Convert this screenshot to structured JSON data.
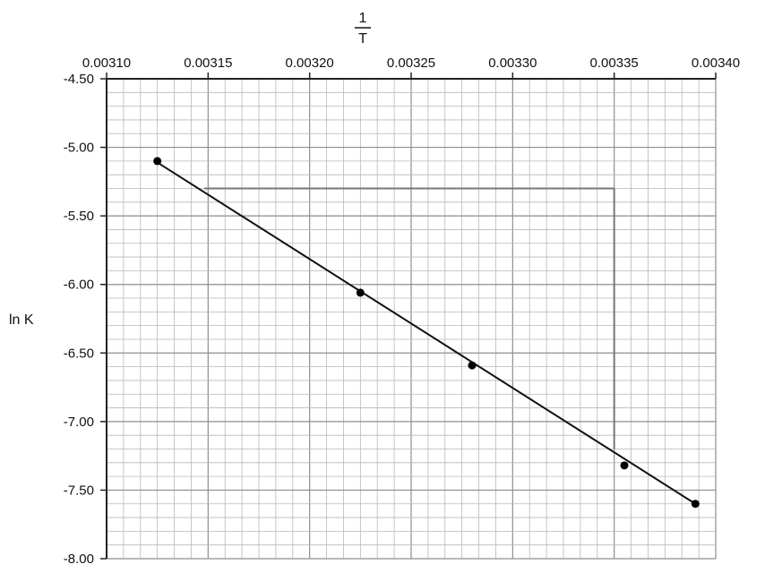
{
  "chart_data": {
    "type": "scatter",
    "x_label_numerator": "1",
    "x_label_denominator": "T",
    "ylabel": "ln K",
    "x_ticks": [
      "0.00310",
      "0.00315",
      "0.00320",
      "0.00325",
      "0.00330",
      "0.00335",
      "0.00340"
    ],
    "y_ticks": [
      "-4.50",
      "-5.00",
      "-5.50",
      "-6.00",
      "-6.50",
      "-7.00",
      "-7.50",
      "-8.00"
    ],
    "xlim": [
      0.0031,
      0.0034
    ],
    "ylim": [
      -8.0,
      -4.5
    ],
    "x_axis_position": "top",
    "grid": true,
    "minor_divisions_x": 6,
    "minor_divisions_y": 5,
    "points": [
      {
        "x": 0.003125,
        "y": -5.1
      },
      {
        "x": 0.003225,
        "y": -6.06
      },
      {
        "x": 0.00328,
        "y": -6.59
      },
      {
        "x": 0.003355,
        "y": -7.32
      },
      {
        "x": 0.00339,
        "y": -7.6
      }
    ],
    "trend_line": {
      "x1": 0.003125,
      "y1": -5.11,
      "x2": 0.00339,
      "y2": -7.6
    },
    "slope_triangle": {
      "x_start": 0.003148,
      "x_end": 0.00335,
      "y_top": -5.3,
      "y_bottom": -7.2
    },
    "colors": {
      "grid": "#b8b8b8",
      "axis": "#222222",
      "line": "#111111",
      "point": "#000000",
      "triangle": "#777777"
    }
  }
}
